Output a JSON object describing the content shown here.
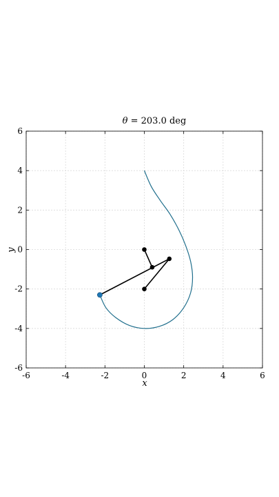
{
  "chart_data": {
    "type": "line",
    "title": "θ = 203.0 deg",
    "title_var": "θ",
    "title_rest": " = 203.0 deg",
    "xlabel": "x",
    "ylabel": "y",
    "xlim": [
      -6,
      6
    ],
    "ylim": [
      -6,
      6
    ],
    "xticks": [
      -6,
      -4,
      -2,
      0,
      2,
      4,
      6
    ],
    "yticks": [
      -6,
      -4,
      -2,
      0,
      2,
      4,
      6
    ],
    "grid": true,
    "curve": {
      "color": "#1f6e8c",
      "points": [
        [
          0.0,
          4.0
        ],
        [
          0.35,
          3.2
        ],
        [
          0.8,
          2.5
        ],
        [
          1.3,
          1.8
        ],
        [
          1.75,
          1.0
        ],
        [
          2.1,
          0.2
        ],
        [
          2.35,
          -0.6
        ],
        [
          2.45,
          -1.4
        ],
        [
          2.35,
          -2.2
        ],
        [
          2.0,
          -2.95
        ],
        [
          1.45,
          -3.55
        ],
        [
          0.75,
          -3.9
        ],
        [
          0.0,
          -4.0
        ],
        [
          -0.75,
          -3.85
        ],
        [
          -1.45,
          -3.45
        ],
        [
          -1.95,
          -2.95
        ],
        [
          -2.26,
          -2.3
        ]
      ]
    },
    "linkage": {
      "color": "#000000",
      "segments": [
        [
          [
            0.0,
            0.0
          ],
          [
            0.4,
            -0.9
          ]
        ],
        [
          [
            0.0,
            -2.0
          ],
          [
            1.27,
            -0.47
          ]
        ],
        [
          [
            -2.26,
            -2.3
          ],
          [
            1.27,
            -0.47
          ]
        ]
      ],
      "joints": [
        [
          0.0,
          0.0
        ],
        [
          0.0,
          -2.0
        ],
        [
          0.4,
          -0.9
        ],
        [
          1.27,
          -0.47
        ]
      ]
    },
    "tracer_point": {
      "x": -2.26,
      "y": -2.3,
      "color": "#1f77b4"
    }
  }
}
